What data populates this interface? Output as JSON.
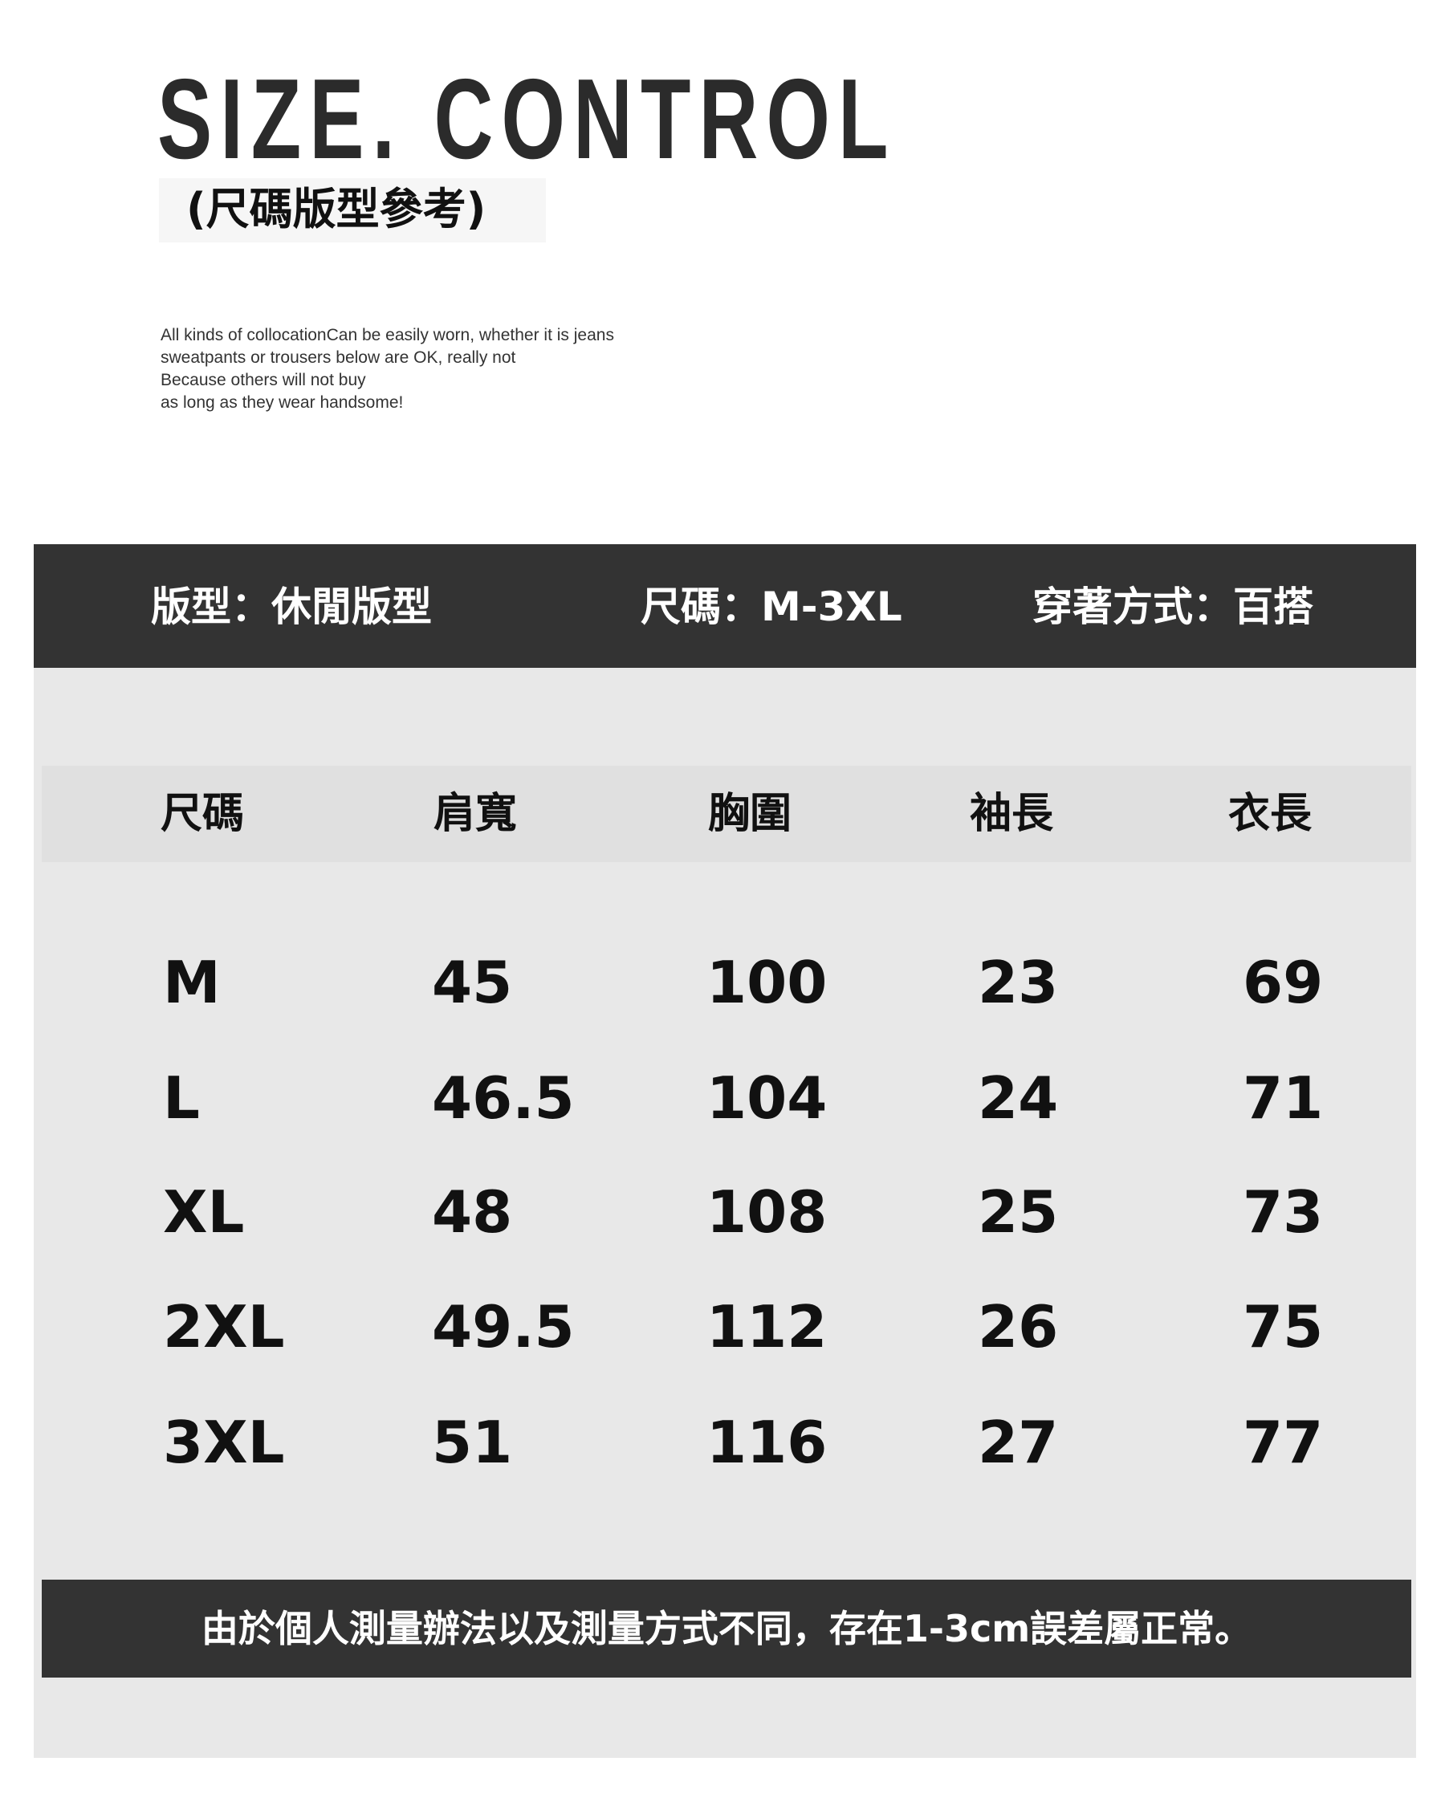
{
  "title": "SIZE. CONTROL",
  "subtitle": "(尺碼版型參考)",
  "description": [
    "All kinds of collocationCan be easily worn, whether it is jeans",
    "sweatpants or trousers below are OK, really not",
    "Because others will not buy",
    "as long as they wear handsome!"
  ],
  "info_band": {
    "fit": "版型：休閒版型",
    "sizes": "尺碼：M-3XL",
    "style": "穿著方式：百搭"
  },
  "table": {
    "headers": [
      "尺碼",
      "肩寬",
      "胸圍",
      "袖長",
      "衣長"
    ],
    "rows": [
      [
        "M",
        "45",
        "100",
        "23",
        "69"
      ],
      [
        "L",
        "46.5",
        "104",
        "24",
        "71"
      ],
      [
        "XL",
        "48",
        "108",
        "25",
        "73"
      ],
      [
        "2XL",
        "49.5",
        "112",
        "26",
        "75"
      ],
      [
        "3XL",
        "51",
        "116",
        "27",
        "77"
      ]
    ]
  },
  "footer_note": "由於個人測量辦法以及測量方式不同，存在1-3cm誤差屬正常。",
  "colors": {
    "dark_band": "#333333",
    "panel": "#e8e8e8",
    "header_row": "#e0e0e0"
  }
}
